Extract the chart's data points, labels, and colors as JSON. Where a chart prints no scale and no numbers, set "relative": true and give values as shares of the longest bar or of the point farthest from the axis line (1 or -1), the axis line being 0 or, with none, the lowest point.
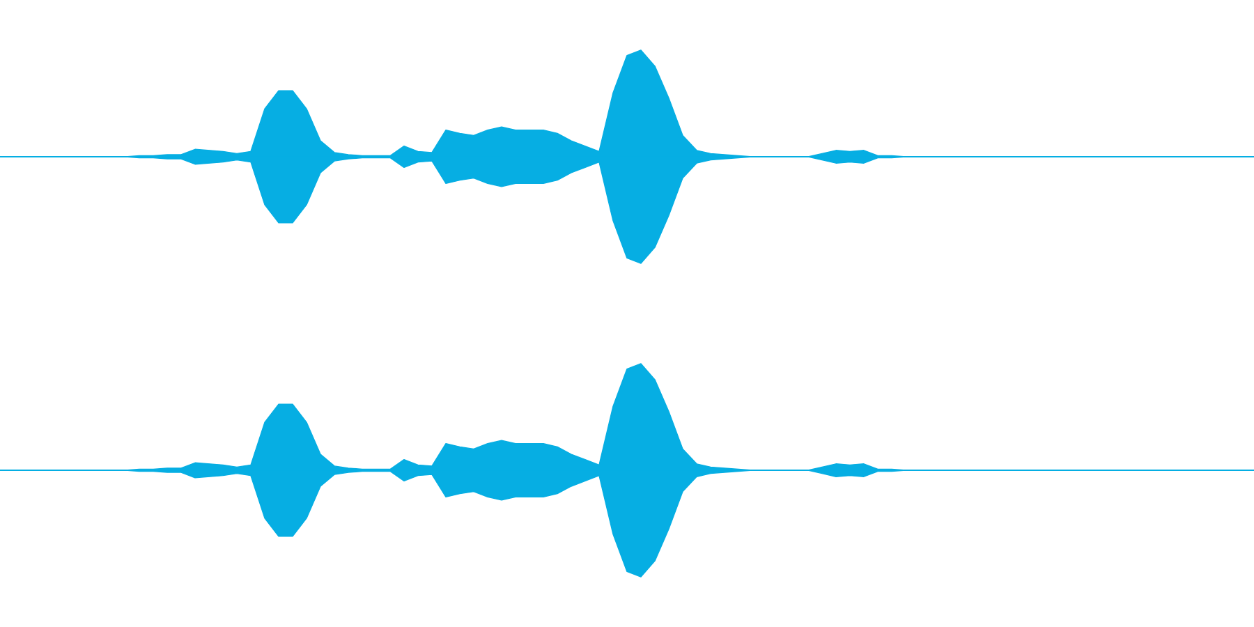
{
  "chart_data": [
    {
      "type": "area",
      "relative": true,
      "categories": [
        null,
        null,
        null,
        null,
        null,
        null,
        null,
        null,
        null,
        null,
        null,
        null,
        null,
        null,
        null,
        null,
        null,
        null,
        null,
        null,
        null,
        null,
        null,
        null,
        null,
        null,
        null,
        null,
        null,
        null,
        null,
        null,
        null,
        null,
        null,
        null,
        null,
        null,
        null,
        null,
        null,
        null,
        null,
        null,
        null,
        null,
        null,
        null,
        null,
        null,
        null,
        null,
        null,
        null,
        null,
        null,
        null,
        null,
        null,
        null,
        null,
        null,
        null,
        null,
        null,
        null,
        null,
        null,
        null,
        null,
        null,
        null,
        null,
        null,
        null,
        null,
        null,
        null,
        null,
        null,
        null,
        null,
        null,
        null,
        null,
        null,
        null,
        null,
        null,
        null,
        null
      ],
      "series": [
        {
          "color": "#06aee3",
          "values": [
            0,
            0,
            0,
            0,
            0,
            0,
            0,
            0,
            0,
            0,
            0.01,
            0.01,
            0.02,
            0.02,
            0.07,
            0.06,
            0.05,
            0.03,
            0.05,
            0.45,
            0.62,
            0.62,
            0.45,
            0.15,
            0.04,
            0.02,
            0.01,
            0.01,
            0.01,
            0.1,
            0.05,
            0.04,
            0.25,
            0.22,
            0.2,
            0.25,
            0.28,
            0.25,
            0.25,
            0.25,
            0.22,
            0.15,
            0.1,
            0.05,
            0.6,
            0.95,
            1,
            0.85,
            0.55,
            0.2,
            0.06,
            0.03,
            0.02,
            0.01,
            0,
            0,
            0,
            0,
            0,
            0.03,
            0.06,
            0.05,
            0.06,
            0.01,
            0.01,
            0,
            0,
            0,
            0,
            0,
            0,
            0,
            0,
            0,
            0,
            0,
            0,
            0,
            0,
            0,
            0,
            0,
            0,
            0,
            0,
            0,
            0,
            0,
            0,
            0,
            0
          ]
        },
        {
          "color": "#06aee3",
          "values": [
            0,
            0,
            0,
            0,
            0,
            0,
            0,
            0,
            0,
            0,
            -0.01,
            -0.01,
            -0.02,
            -0.02,
            -0.07,
            -0.06,
            -0.05,
            -0.03,
            -0.05,
            -0.45,
            -0.62,
            -0.62,
            -0.45,
            -0.15,
            -0.04,
            -0.02,
            -0.01,
            -0.01,
            -0.01,
            -0.1,
            -0.05,
            -0.04,
            -0.25,
            -0.22,
            -0.2,
            -0.25,
            -0.28,
            -0.25,
            -0.25,
            -0.25,
            -0.22,
            -0.15,
            -0.1,
            -0.05,
            -0.6,
            -0.95,
            -1,
            -0.85,
            -0.55,
            -0.2,
            -0.06,
            -0.03,
            -0.02,
            -0.01,
            0,
            0,
            0,
            0,
            0,
            -0.03,
            -0.06,
            -0.05,
            -0.06,
            -0.01,
            -0.01,
            0,
            0,
            0,
            0,
            0,
            0,
            0,
            0,
            0,
            0,
            0,
            0,
            0,
            0,
            0,
            0,
            0,
            0,
            0,
            0,
            0,
            0,
            0,
            0,
            0,
            0
          ]
        }
      ]
    },
    {
      "type": "area",
      "relative": true,
      "categories": [
        null,
        null,
        null,
        null,
        null,
        null,
        null,
        null,
        null,
        null,
        null,
        null,
        null,
        null,
        null,
        null,
        null,
        null,
        null,
        null,
        null,
        null,
        null,
        null,
        null,
        null,
        null,
        null,
        null,
        null,
        null,
        null,
        null,
        null,
        null,
        null,
        null,
        null,
        null,
        null,
        null,
        null,
        null,
        null,
        null,
        null,
        null,
        null,
        null,
        null,
        null,
        null,
        null,
        null,
        null,
        null,
        null,
        null,
        null,
        null,
        null,
        null,
        null,
        null,
        null,
        null,
        null,
        null,
        null,
        null,
        null,
        null,
        null,
        null,
        null,
        null,
        null,
        null,
        null,
        null,
        null,
        null,
        null,
        null,
        null,
        null,
        null,
        null,
        null,
        null,
        null
      ],
      "series": [
        {
          "color": "#06aee3",
          "values": [
            0,
            0,
            0,
            0,
            0,
            0,
            0,
            0,
            0,
            0,
            0.01,
            0.01,
            0.02,
            0.02,
            0.07,
            0.06,
            0.05,
            0.03,
            0.05,
            0.45,
            0.62,
            0.62,
            0.45,
            0.15,
            0.04,
            0.02,
            0.01,
            0.01,
            0.01,
            0.1,
            0.05,
            0.04,
            0.25,
            0.22,
            0.2,
            0.25,
            0.28,
            0.25,
            0.25,
            0.25,
            0.22,
            0.15,
            0.1,
            0.05,
            0.6,
            0.95,
            1,
            0.85,
            0.55,
            0.2,
            0.06,
            0.03,
            0.02,
            0.01,
            0,
            0,
            0,
            0,
            0,
            0.03,
            0.06,
            0.05,
            0.06,
            0.01,
            0.01,
            0,
            0,
            0,
            0,
            0,
            0,
            0,
            0,
            0,
            0,
            0,
            0,
            0,
            0,
            0,
            0,
            0,
            0,
            0,
            0,
            0,
            0,
            0,
            0,
            0,
            0
          ]
        },
        {
          "color": "#06aee3",
          "values": [
            0,
            0,
            0,
            0,
            0,
            0,
            0,
            0,
            0,
            0,
            -0.01,
            -0.01,
            -0.02,
            -0.02,
            -0.07,
            -0.06,
            -0.05,
            -0.03,
            -0.05,
            -0.45,
            -0.62,
            -0.62,
            -0.45,
            -0.15,
            -0.04,
            -0.02,
            -0.01,
            -0.01,
            -0.01,
            -0.1,
            -0.05,
            -0.04,
            -0.25,
            -0.22,
            -0.2,
            -0.25,
            -0.28,
            -0.25,
            -0.25,
            -0.25,
            -0.22,
            -0.15,
            -0.1,
            -0.05,
            -0.6,
            -0.95,
            -1,
            -0.85,
            -0.55,
            -0.2,
            -0.06,
            -0.03,
            -0.02,
            -0.01,
            0,
            0,
            0,
            0,
            0,
            -0.03,
            -0.06,
            -0.05,
            -0.06,
            -0.01,
            -0.01,
            0,
            0,
            0,
            0,
            0,
            0,
            0,
            0,
            0,
            0,
            0,
            0,
            0,
            0,
            0,
            0,
            0,
            0,
            0,
            0,
            0,
            0,
            0,
            0,
            0,
            0
          ]
        }
      ]
    }
  ]
}
